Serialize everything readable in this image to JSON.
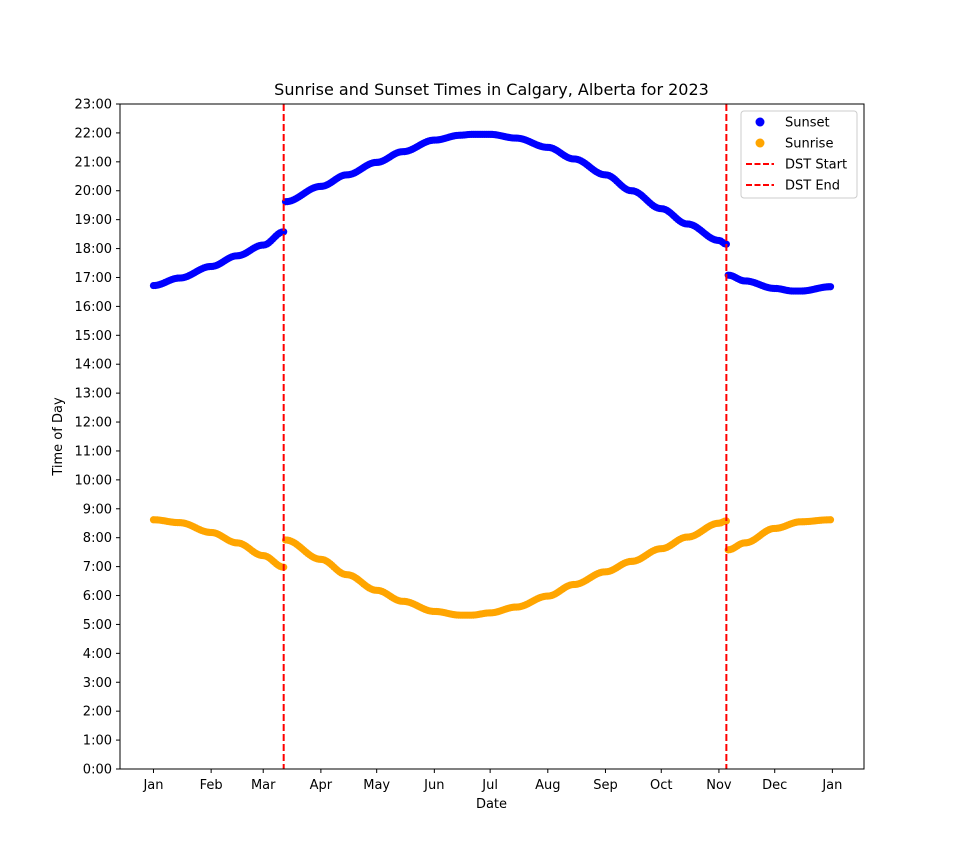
{
  "chart_data": {
    "type": "scatter",
    "title": "Sunrise and Sunset Times in Calgary, Alberta for 2023",
    "xlabel": "Date",
    "ylabel": "Time of Day",
    "xlim": [
      "2022-12-14",
      "2024-01-18"
    ],
    "ylim": [
      0,
      23
    ],
    "x_tick_values": [
      "2023-01-01",
      "2023-02-01",
      "2023-03-01",
      "2023-04-01",
      "2023-05-01",
      "2023-06-01",
      "2023-07-01",
      "2023-08-01",
      "2023-09-01",
      "2023-10-01",
      "2023-11-01",
      "2023-12-01",
      "2024-01-01"
    ],
    "x_tick_labels": [
      "Jan",
      "Feb",
      "Mar",
      "Apr",
      "May",
      "Jun",
      "Jul",
      "Aug",
      "Sep",
      "Oct",
      "Nov",
      "Dec",
      "Jan"
    ],
    "y_tick_values": [
      0,
      1,
      2,
      3,
      4,
      5,
      6,
      7,
      8,
      9,
      10,
      11,
      12,
      13,
      14,
      15,
      16,
      17,
      18,
      19,
      20,
      21,
      22,
      23
    ],
    "y_tick_labels": [
      "0:00",
      "1:00",
      "2:00",
      "3:00",
      "4:00",
      "5:00",
      "6:00",
      "7:00",
      "8:00",
      "9:00",
      "10:00",
      "11:00",
      "12:00",
      "13:00",
      "14:00",
      "15:00",
      "16:00",
      "17:00",
      "18:00",
      "19:00",
      "20:00",
      "21:00",
      "22:00",
      "23:00"
    ],
    "grid": false,
    "legend_position": "top-right",
    "series": [
      {
        "name": "Sunset",
        "kind": "scatter",
        "color": "#0000ff",
        "points": [
          [
            "2023-01-01",
            16.72
          ],
          [
            "2023-01-15",
            16.98
          ],
          [
            "2023-02-01",
            17.38
          ],
          [
            "2023-02-15",
            17.75
          ],
          [
            "2023-03-01",
            18.12
          ],
          [
            "2023-03-12",
            18.58
          ],
          [
            "2023-03-13",
            19.62
          ],
          [
            "2023-04-01",
            20.15
          ],
          [
            "2023-04-15",
            20.55
          ],
          [
            "2023-05-01",
            20.98
          ],
          [
            "2023-05-15",
            21.35
          ],
          [
            "2023-06-01",
            21.75
          ],
          [
            "2023-06-15",
            21.92
          ],
          [
            "2023-06-21",
            21.95
          ],
          [
            "2023-07-01",
            21.95
          ],
          [
            "2023-07-15",
            21.82
          ],
          [
            "2023-08-01",
            21.5
          ],
          [
            "2023-08-15",
            21.1
          ],
          [
            "2023-09-01",
            20.55
          ],
          [
            "2023-09-15",
            20.0
          ],
          [
            "2023-10-01",
            19.38
          ],
          [
            "2023-10-15",
            18.85
          ],
          [
            "2023-11-01",
            18.28
          ],
          [
            "2023-11-05",
            18.15
          ],
          [
            "2023-11-06",
            17.08
          ],
          [
            "2023-11-15",
            16.88
          ],
          [
            "2023-12-01",
            16.62
          ],
          [
            "2023-12-11",
            16.53
          ],
          [
            "2023-12-15",
            16.53
          ],
          [
            "2023-12-31",
            16.68
          ]
        ]
      },
      {
        "name": "Sunrise",
        "kind": "scatter",
        "color": "#ffa500",
        "points": [
          [
            "2023-01-01",
            8.62
          ],
          [
            "2023-01-15",
            8.52
          ],
          [
            "2023-02-01",
            8.18
          ],
          [
            "2023-02-15",
            7.82
          ],
          [
            "2023-03-01",
            7.38
          ],
          [
            "2023-03-12",
            6.98
          ],
          [
            "2023-03-13",
            7.92
          ],
          [
            "2023-04-01",
            7.25
          ],
          [
            "2023-04-15",
            6.72
          ],
          [
            "2023-05-01",
            6.18
          ],
          [
            "2023-05-15",
            5.8
          ],
          [
            "2023-06-01",
            5.45
          ],
          [
            "2023-06-15",
            5.32
          ],
          [
            "2023-06-21",
            5.32
          ],
          [
            "2023-07-01",
            5.4
          ],
          [
            "2023-07-15",
            5.6
          ],
          [
            "2023-08-01",
            5.98
          ],
          [
            "2023-08-15",
            6.38
          ],
          [
            "2023-09-01",
            6.82
          ],
          [
            "2023-09-15",
            7.18
          ],
          [
            "2023-10-01",
            7.62
          ],
          [
            "2023-10-15",
            8.02
          ],
          [
            "2023-11-01",
            8.5
          ],
          [
            "2023-11-05",
            8.58
          ],
          [
            "2023-11-06",
            7.58
          ],
          [
            "2023-11-15",
            7.82
          ],
          [
            "2023-12-01",
            8.32
          ],
          [
            "2023-12-15",
            8.55
          ],
          [
            "2023-12-31",
            8.62
          ]
        ]
      },
      {
        "name": "DST Start",
        "kind": "vline",
        "color": "#ff0000",
        "x": "2023-03-12"
      },
      {
        "name": "DST End",
        "kind": "vline",
        "color": "#ff0000",
        "x": "2023-11-05"
      }
    ]
  }
}
